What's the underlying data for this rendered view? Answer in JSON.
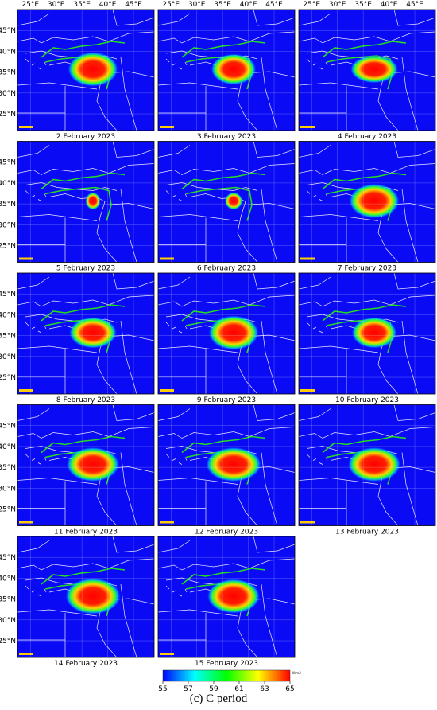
{
  "panels": [
    {
      "date": "2 February 2023"
    },
    {
      "date": "3 February 2023"
    },
    {
      "date": "4 February 2023"
    },
    {
      "date": "5 February 2023"
    },
    {
      "date": "6 February 2023"
    },
    {
      "date": "7 February 2023"
    },
    {
      "date": "8 February 2023"
    },
    {
      "date": "9 February 2023"
    },
    {
      "date": "10 February 2023"
    },
    {
      "date": "11 February 2023"
    },
    {
      "date": "12 February 2023"
    },
    {
      "date": "13 February 2023"
    },
    {
      "date": "14 February 2023"
    },
    {
      "date": "15 February 2023"
    }
  ],
  "map": {
    "xlim": [
      22.5,
      49
    ],
    "ylim": [
      21,
      50
    ],
    "xticks": [
      {
        "value": 25,
        "label": "25°E"
      },
      {
        "value": 30,
        "label": "30°E"
      },
      {
        "value": 35,
        "label": "35°E"
      },
      {
        "value": 40,
        "label": "40°E"
      },
      {
        "value": 45,
        "label": "45°E"
      }
    ],
    "yticks": [
      {
        "value": 45,
        "label": "45°N"
      },
      {
        "value": 40,
        "label": "40°N"
      },
      {
        "value": 35,
        "label": "35°N"
      },
      {
        "value": 30,
        "label": "30°N"
      },
      {
        "value": 25,
        "label": "25°N"
      }
    ]
  },
  "colorbar": {
    "range": [
      55,
      65
    ],
    "ticks": [
      55,
      57,
      59,
      61,
      63,
      65
    ],
    "unit": "W/m2",
    "colors": [
      "#0000ff",
      "#00ffff",
      "#00ff00",
      "#ffff00",
      "#ff0000"
    ]
  },
  "caption": "(c) C period"
}
